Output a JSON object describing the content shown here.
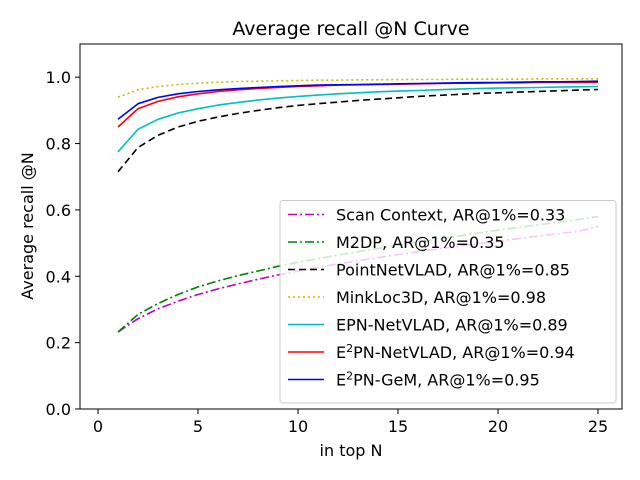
{
  "chart_data": {
    "type": "line",
    "title": "Average recall @N Curve",
    "xlabel": "in top N",
    "ylabel": "Average recall @N",
    "xlim": [
      -0.9,
      26.2
    ],
    "ylim": [
      0.0,
      1.1
    ],
    "xticks": [
      0,
      5,
      10,
      15,
      20,
      25
    ],
    "yticks": [
      0.0,
      0.2,
      0.4,
      0.6,
      0.8,
      1.0
    ],
    "xtick_labels": [
      "0",
      "5",
      "10",
      "15",
      "20",
      "25"
    ],
    "ytick_labels": [
      "0.0",
      "0.2",
      "0.4",
      "0.6",
      "0.8",
      "1.0"
    ],
    "grid": false,
    "legend_position": "lower-right",
    "x": [
      1,
      2,
      3,
      4,
      5,
      6,
      7,
      8,
      9,
      10,
      11,
      12,
      13,
      14,
      15,
      16,
      17,
      18,
      19,
      20,
      21,
      22,
      23,
      24,
      25
    ],
    "series": [
      {
        "name": "Scan Context, AR@1%=0.33",
        "legend_main": "Scan Context, AR@1%=0.33",
        "legend_sup": "",
        "legend_rest": "",
        "color": "#bf00bf",
        "dash": "dashdot",
        "values": [
          0.232,
          0.272,
          0.302,
          0.325,
          0.345,
          0.362,
          0.377,
          0.391,
          0.404,
          0.416,
          0.427,
          0.437,
          0.447,
          0.456,
          0.465,
          0.474,
          0.482,
          0.49,
          0.498,
          0.506,
          0.513,
          0.521,
          0.528,
          0.535,
          0.55
        ]
      },
      {
        "name": "M2DP, AR@1%=0.35",
        "legend_main": "M2DP, AR@1%=0.35",
        "legend_sup": "",
        "legend_rest": "",
        "color": "#008000",
        "dash": "dashdot",
        "values": [
          0.232,
          0.285,
          0.318,
          0.345,
          0.368,
          0.386,
          0.402,
          0.416,
          0.43,
          0.442,
          0.453,
          0.464,
          0.474,
          0.484,
          0.494,
          0.503,
          0.512,
          0.521,
          0.53,
          0.539,
          0.547,
          0.555,
          0.563,
          0.571,
          0.58
        ]
      },
      {
        "name": "PointNetVLAD, AR@1%=0.85",
        "legend_main": "PointNetVLAD, AR@1%=0.85",
        "legend_sup": "",
        "legend_rest": "",
        "color": "#000000",
        "dash": "dashed",
        "values": [
          0.715,
          0.788,
          0.825,
          0.85,
          0.867,
          0.88,
          0.891,
          0.9,
          0.908,
          0.915,
          0.92,
          0.925,
          0.93,
          0.934,
          0.938,
          0.942,
          0.945,
          0.948,
          0.951,
          0.953,
          0.955,
          0.957,
          0.959,
          0.961,
          0.963
        ]
      },
      {
        "name": "MinkLoc3D, AR@1%=0.98",
        "legend_main": "MinkLoc3D, AR@1%=0.98",
        "legend_sup": "",
        "legend_rest": "",
        "color": "#bfbf00",
        "dash": "dotted",
        "values": [
          0.94,
          0.962,
          0.972,
          0.978,
          0.982,
          0.985,
          0.987,
          0.988,
          0.989,
          0.99,
          0.991,
          0.991,
          0.992,
          0.992,
          0.993,
          0.993,
          0.993,
          0.994,
          0.994,
          0.994,
          0.994,
          0.995,
          0.995,
          0.995,
          0.995
        ]
      },
      {
        "name": "EPN-NetVLAD, AR@1%=0.89",
        "legend_main": "EPN-NetVLAD, AR@1%=0.89",
        "legend_sup": "",
        "legend_rest": "",
        "color": "#00bfbf",
        "dash": "solid",
        "values": [
          0.775,
          0.843,
          0.873,
          0.892,
          0.905,
          0.916,
          0.924,
          0.931,
          0.937,
          0.942,
          0.946,
          0.95,
          0.953,
          0.956,
          0.958,
          0.96,
          0.962,
          0.964,
          0.966,
          0.967,
          0.968,
          0.969,
          0.97,
          0.971,
          0.972
        ]
      },
      {
        "name": "E2PN-NetVLAD, AR@1%=0.94",
        "legend_main": "E",
        "legend_sup": "2",
        "legend_rest": "PN-NetVLAD, AR@1%=0.94",
        "color": "#ff0000",
        "dash": "solid",
        "values": [
          0.85,
          0.905,
          0.927,
          0.941,
          0.95,
          0.957,
          0.962,
          0.966,
          0.969,
          0.972,
          0.974,
          0.976,
          0.977,
          0.978,
          0.979,
          0.98,
          0.981,
          0.982,
          0.982,
          0.983,
          0.983,
          0.984,
          0.984,
          0.984,
          0.985
        ]
      },
      {
        "name": "E2PN-GeM, AR@1%=0.95",
        "legend_main": "E",
        "legend_sup": "2",
        "legend_rest": "PN-GeM, AR@1%=0.95",
        "color": "#0000ff",
        "dash": "solid",
        "values": [
          0.873,
          0.92,
          0.939,
          0.95,
          0.957,
          0.962,
          0.966,
          0.969,
          0.972,
          0.974,
          0.976,
          0.977,
          0.978,
          0.979,
          0.98,
          0.981,
          0.982,
          0.983,
          0.984,
          0.984,
          0.985,
          0.986,
          0.986,
          0.987,
          0.988
        ]
      }
    ]
  }
}
